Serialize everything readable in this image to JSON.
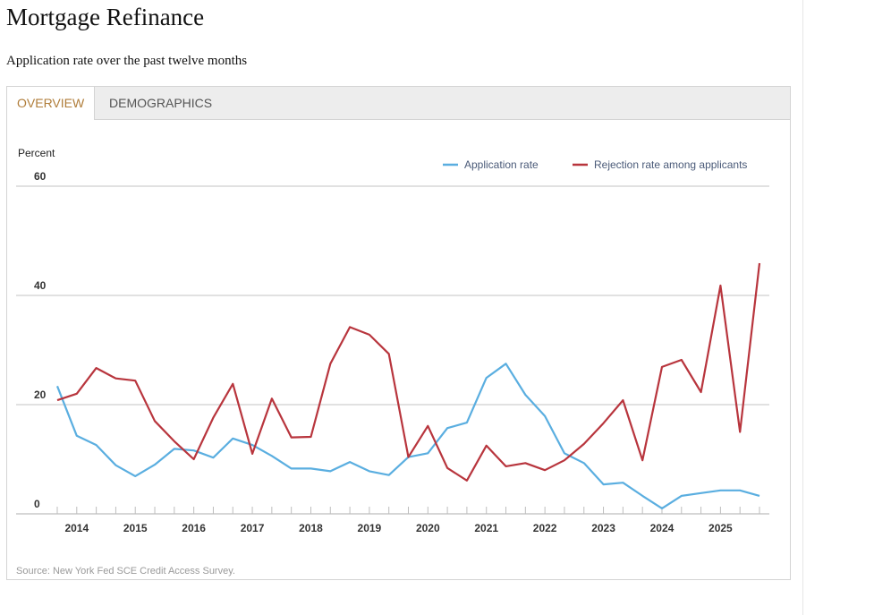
{
  "header": {
    "title": "Mortgage Refinance",
    "subtitle": "Application rate over the past twelve months"
  },
  "tabs": [
    {
      "label": "OVERVIEW",
      "active": true
    },
    {
      "label": "DEMOGRAPHICS",
      "active": false
    }
  ],
  "source": "Source: New York Fed SCE Credit Access Survey.",
  "colors": {
    "application": "#5aaee0",
    "rejection": "#b8353d",
    "active_tab": "#b07d3a"
  },
  "chart_data": {
    "type": "line",
    "ylabel": "Percent",
    "ylim": [
      0,
      60
    ],
    "yticks": [
      "0",
      "20",
      "40",
      "60"
    ],
    "grid": true,
    "legend_position": "top-right",
    "year_labels": [
      "2014",
      "2015",
      "2016",
      "2017",
      "2018",
      "2019",
      "2020",
      "2021",
      "2022",
      "2023",
      "2024",
      "2025"
    ],
    "points_per_year": 3,
    "series": [
      {
        "name": "Application rate",
        "color": "#5aaee0",
        "values": [
          23.4,
          14.3,
          12.6,
          8.9,
          6.9,
          9.0,
          11.9,
          11.6,
          10.3,
          13.8,
          12.6,
          10.6,
          8.3,
          8.3,
          7.8,
          9.5,
          7.8,
          7.1,
          10.4,
          11.1,
          15.7,
          16.7,
          24.9,
          27.5,
          21.8,
          17.9,
          11.1,
          9.3,
          5.4,
          5.7,
          3.3,
          1.0,
          3.3,
          3.8,
          4.3,
          4.3,
          3.3
        ]
      },
      {
        "name": "Rejection rate among applicants",
        "color": "#b8353d",
        "values": [
          20.8,
          22.0,
          26.7,
          24.8,
          24.4,
          17.0,
          13.3,
          10.0,
          17.6,
          23.8,
          11.0,
          21.1,
          14.0,
          14.1,
          27.5,
          34.2,
          32.8,
          29.3,
          10.4,
          16.1,
          8.4,
          6.1,
          12.5,
          8.7,
          9.3,
          8.0,
          9.8,
          12.8,
          16.6,
          20.8,
          9.8,
          26.9,
          28.2,
          22.3,
          41.8,
          15.0,
          45.9
        ]
      }
    ]
  }
}
